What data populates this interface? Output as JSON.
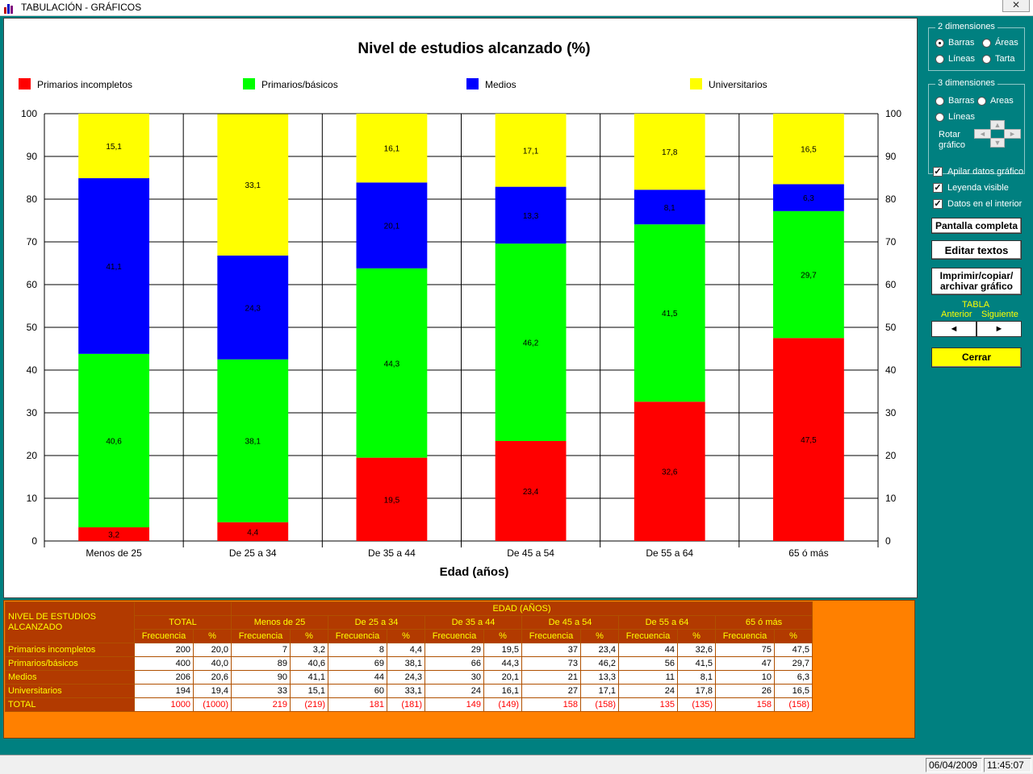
{
  "window": {
    "title": "TABULACIÓN - GRÁFICOS",
    "close_glyph": "✕"
  },
  "chart_data": {
    "type": "bar",
    "stacked": true,
    "title": "Nivel de estudios alcanzado (%)",
    "xlabel": "Edad (años)",
    "ylabel": "",
    "ylim": [
      0,
      100
    ],
    "yticks": [
      "0",
      "10",
      "20",
      "30",
      "40",
      "50",
      "60",
      "70",
      "80",
      "90",
      "100"
    ],
    "grid": true,
    "legend_position": "top",
    "categories": [
      "Menos de 25",
      "De 25 a 34",
      "De 35 a 44",
      "De 45 a 54",
      "De 55 a 64",
      "65 ó más"
    ],
    "series": [
      {
        "name": "Primarios incompletos",
        "color": "#ff0000",
        "values": [
          3.2,
          4.4,
          19.5,
          23.4,
          32.6,
          47.5
        ],
        "labels": [
          "3,2",
          "4,4",
          "19,5",
          "23,4",
          "32,6",
          "47,5"
        ]
      },
      {
        "name": "Primarios/básicos",
        "color": "#00ff00",
        "values": [
          40.6,
          38.1,
          44.3,
          46.2,
          41.5,
          29.7
        ],
        "labels": [
          "40,6",
          "38,1",
          "44,3",
          "46,2",
          "41,5",
          "29,7"
        ]
      },
      {
        "name": "Medios",
        "color": "#0000ff",
        "values": [
          41.1,
          24.3,
          20.1,
          13.3,
          8.1,
          6.3
        ],
        "labels": [
          "41,1",
          "24,3",
          "20,1",
          "13,3",
          "8,1",
          "6,3"
        ]
      },
      {
        "name": "Universitarios",
        "color": "#ffff00",
        "values": [
          15.1,
          33.1,
          16.1,
          17.1,
          17.8,
          16.5
        ],
        "labels": [
          "15,1",
          "33,1",
          "16,1",
          "17,1",
          "17,8",
          "16,5"
        ]
      }
    ]
  },
  "controls": {
    "dim2": {
      "title": "2 dimensiones",
      "barras": "Barras",
      "areas": "Áreas",
      "lineas": "Líneas",
      "tarta": "Tarta"
    },
    "dim3": {
      "title": "3 dimensiones",
      "barras": "Barras",
      "areas": "Areas",
      "lineas": "Líneas",
      "rotar": "Rotar",
      "grafico": "gráfico"
    },
    "checks": {
      "apilar": "Apilar datos gráfico",
      "leyenda": "Leyenda visible",
      "datos": "Datos en el interior"
    },
    "buttons": {
      "pantalla": "Pantalla completa",
      "editar": "Editar textos",
      "imprimir1": "Imprimir/copiar/",
      "imprimir2": "archivar gráfico",
      "cerrar": "Cerrar"
    },
    "tabla": {
      "label": "TABLA",
      "anterior": "Anterior",
      "siguiente": "Siguiente",
      "prev_glyph": "◄",
      "next_glyph": "►"
    },
    "checked": true
  },
  "table": {
    "corner1": "NIVEL DE ESTUDIOS",
    "corner2": "ALCANZADO",
    "edad": "EDAD (AÑOS)",
    "groups": [
      "TOTAL",
      "Menos de 25",
      "De 25 a 34",
      "De 35 a 44",
      "De 45 a 54",
      "De 55 a 64",
      "65 ó más"
    ],
    "sub": [
      "Frecuencia",
      "%"
    ],
    "rows": [
      {
        "label": "Primarios incompletos",
        "cells": [
          "200",
          "20,0",
          "7",
          "3,2",
          "8",
          "4,4",
          "29",
          "19,5",
          "37",
          "23,4",
          "44",
          "32,6",
          "75",
          "47,5"
        ]
      },
      {
        "label": "Primarios/básicos",
        "cells": [
          "400",
          "40,0",
          "89",
          "40,6",
          "69",
          "38,1",
          "66",
          "44,3",
          "73",
          "46,2",
          "56",
          "41,5",
          "47",
          "29,7"
        ]
      },
      {
        "label": "Medios",
        "cells": [
          "206",
          "20,6",
          "90",
          "41,1",
          "44",
          "24,3",
          "30",
          "20,1",
          "21",
          "13,3",
          "11",
          "8,1",
          "10",
          "6,3"
        ]
      },
      {
        "label": "Universitarios",
        "cells": [
          "194",
          "19,4",
          "33",
          "15,1",
          "60",
          "33,1",
          "24",
          "16,1",
          "27",
          "17,1",
          "24",
          "17,8",
          "26",
          "16,5"
        ]
      },
      {
        "label": "TOTAL",
        "cells": [
          "1000",
          "(1000)",
          "219",
          "(219)",
          "181",
          "(181)",
          "149",
          "(149)",
          "158",
          "(158)",
          "135",
          "(135)",
          "158",
          "(158)"
        ]
      }
    ]
  },
  "status": {
    "date": "06/04/2009",
    "time": "11:45:07"
  }
}
